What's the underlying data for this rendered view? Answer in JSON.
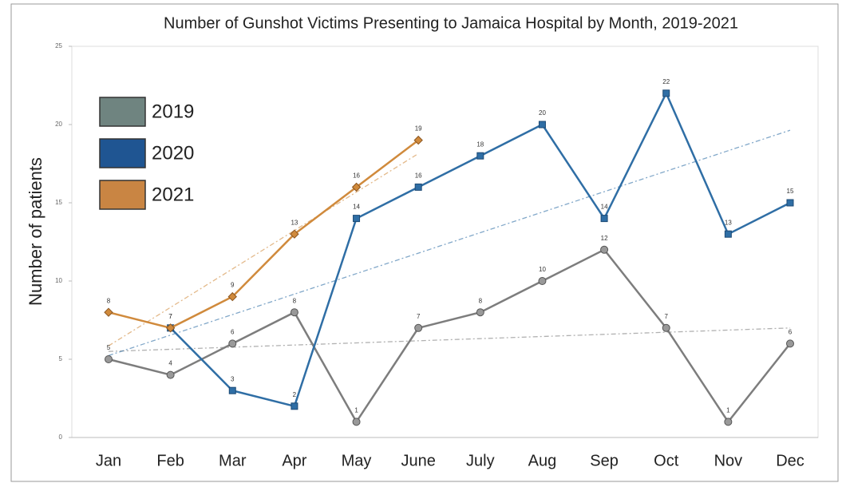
{
  "chart_data": {
    "type": "line",
    "title": "Number of Gunshot Victims Presenting to Jamaica Hospital by Month, 2019-2021",
    "y_label": "Number of patients",
    "categories": [
      "Jan",
      "Feb",
      "Mar",
      "Apr",
      "May",
      "June",
      "July",
      "Aug",
      "Sep",
      "Oct",
      "Nov",
      "Dec"
    ],
    "series": [
      {
        "name": "2019",
        "color": "#7d7d7d",
        "legend_color": "#6f8480",
        "marker": "circle",
        "values": [
          5,
          4,
          6,
          8,
          1,
          7,
          8,
          10,
          12,
          7,
          1,
          6
        ]
      },
      {
        "name": "2020",
        "color": "#2f6ea5",
        "legend_color": "#1f5592",
        "marker": "square",
        "values": [
          null,
          7,
          3,
          2,
          14,
          16,
          18,
          20,
          14,
          22,
          13,
          15
        ]
      },
      {
        "name": "2021",
        "color": "#d08a3c",
        "legend_color": "#c98543",
        "marker": "diamond",
        "values": [
          8,
          7,
          9,
          13,
          16,
          19,
          null,
          null,
          null,
          null,
          null,
          null
        ]
      }
    ],
    "ylim": [
      0,
      25
    ],
    "yticks": [
      0,
      5,
      10,
      15,
      20,
      25
    ],
    "trendlines": true,
    "legend": "upper left"
  }
}
